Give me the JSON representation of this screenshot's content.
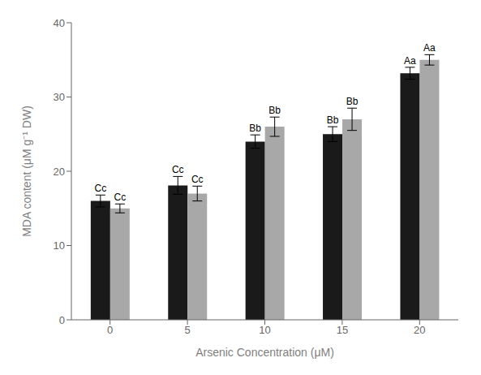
{
  "chart_data": {
    "type": "bar",
    "categories": [
      "0",
      "5",
      "10",
      "15",
      "20"
    ],
    "series": [
      {
        "color": "#1a1a1a",
        "values": [
          16.0,
          18.1,
          24.0,
          25.0,
          33.2
        ],
        "errors": [
          0.8,
          1.2,
          0.9,
          1.0,
          0.8
        ],
        "labels": [
          "Cc",
          "Cc",
          "Bb",
          "Bb",
          "Aa"
        ]
      },
      {
        "color": "#a8a8a8",
        "values": [
          15.0,
          17.0,
          26.0,
          27.0,
          35.0
        ],
        "errors": [
          0.6,
          1.0,
          1.3,
          1.5,
          0.7
        ],
        "labels": [
          "Cc",
          "Cc",
          "Bb",
          "Bb",
          "Aa"
        ]
      }
    ],
    "xlabel": "Arsenic Concentration (μM)",
    "ylabel": "MDA content (μM g⁻¹ DW)",
    "ylim": [
      0,
      40
    ],
    "yticks": [
      0,
      10,
      20,
      30,
      40
    ],
    "grid": false
  }
}
